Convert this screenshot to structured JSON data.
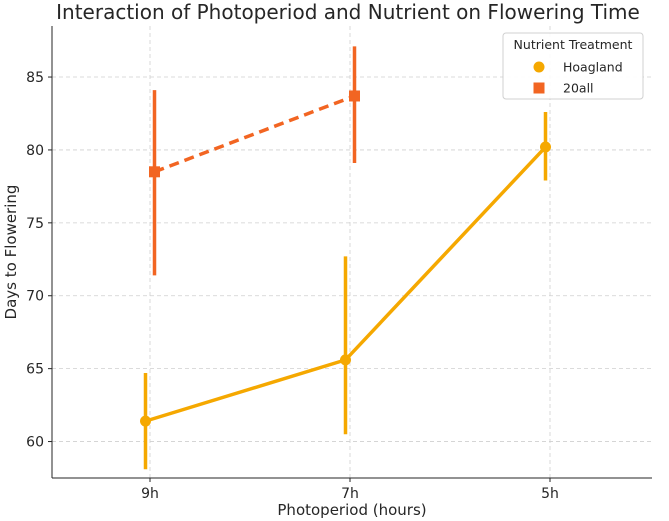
{
  "chart_data": {
    "type": "line",
    "title": "Interaction of Photoperiod and Nutrient on Flowering Time",
    "xlabel": "Photoperiod (hours)",
    "ylabel": "Days to Flowering",
    "categories": [
      "9h",
      "7h",
      "5h"
    ],
    "ylim": [
      57.5,
      88.5
    ],
    "yticks": [
      60,
      65,
      70,
      75,
      80,
      85
    ],
    "grid": true,
    "legend": {
      "title": "Nutrient Treatment",
      "placement": "top-right"
    },
    "series": [
      {
        "name": "Hoagland",
        "color": "#f5a800",
        "marker": "circle",
        "linestyle": "solid",
        "dodge": -1,
        "values": [
          61.4,
          65.6,
          80.2
        ],
        "err_low": [
          58.1,
          60.5,
          77.9
        ],
        "err_high": [
          64.7,
          72.7,
          82.6
        ]
      },
      {
        "name": "20all",
        "color": "#f26522",
        "marker": "square",
        "linestyle": "dashed",
        "dodge": 1,
        "values": [
          78.5,
          83.7,
          null
        ],
        "err_low": [
          71.4,
          79.1,
          null
        ],
        "err_high": [
          84.1,
          87.1,
          null
        ]
      }
    ]
  }
}
